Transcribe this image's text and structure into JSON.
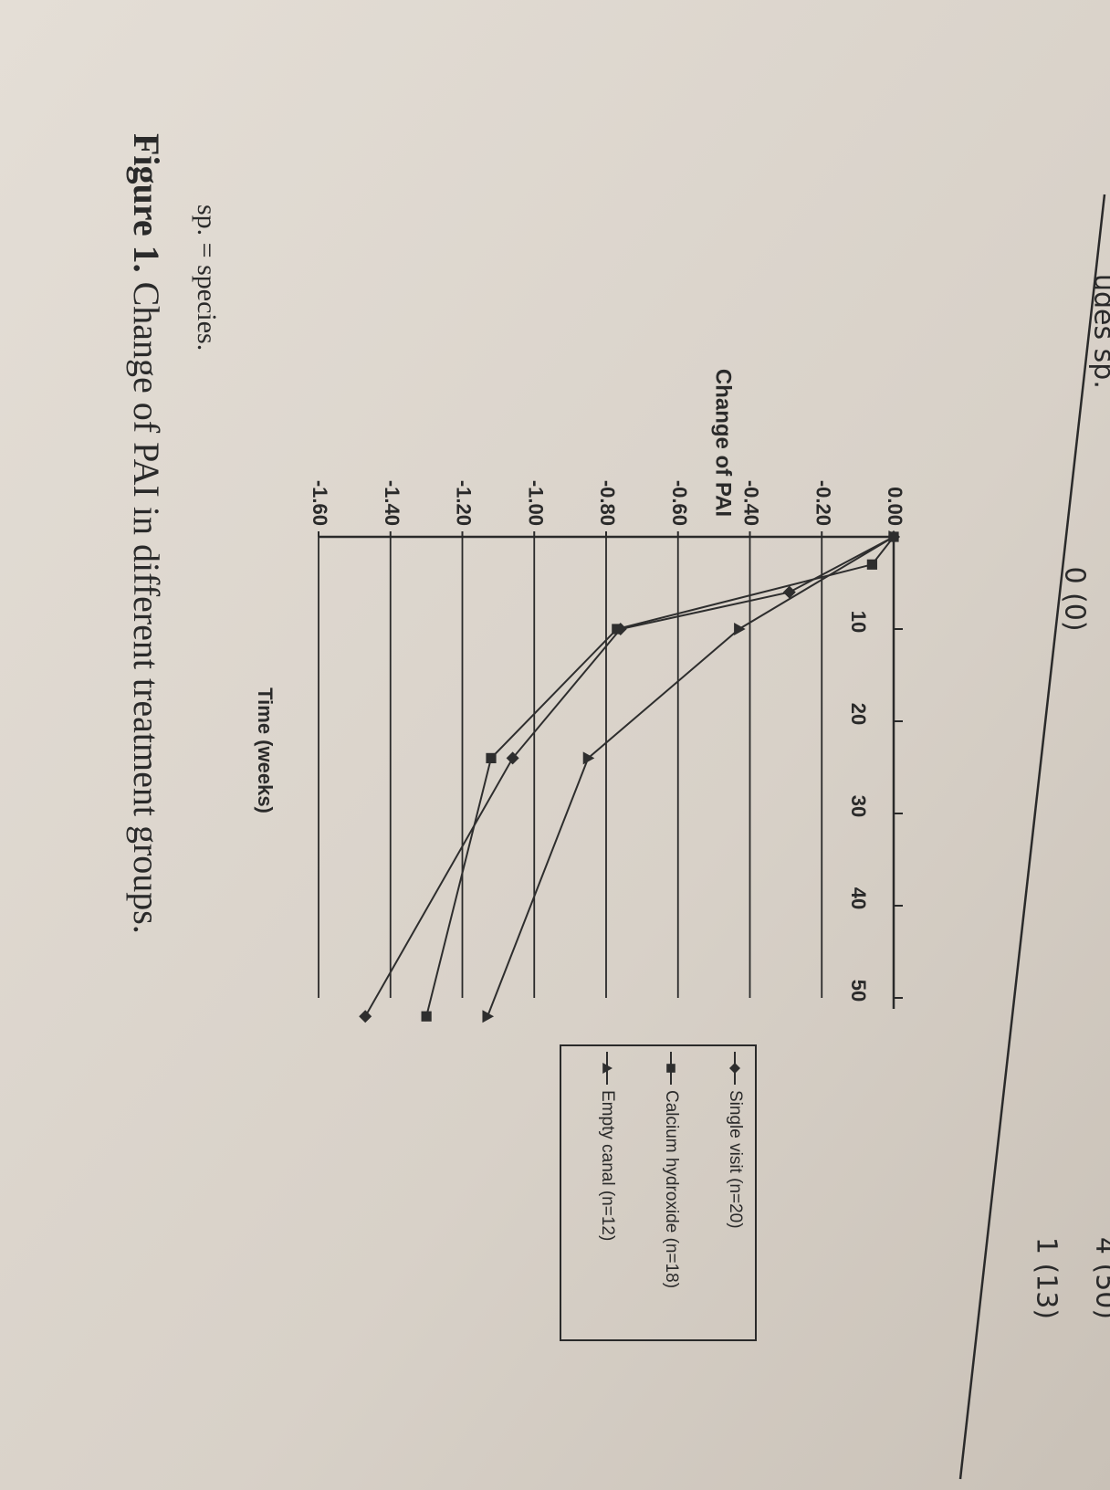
{
  "page": {
    "table_cut_text": "udes sp.",
    "table_cell_1": "0 (0)",
    "table_cell_2": "4 (50)",
    "table_cell_3": "1 (13)",
    "footnote": "sp. = species.",
    "caption_label": "Figure 1.",
    "caption_text": "Change of PAI in different treatment groups."
  },
  "chart_data": {
    "type": "line",
    "ylabel": "Change of PAI",
    "xlabel": "Time (weeks)",
    "xlim": [
      0,
      50
    ],
    "xticks": [
      10,
      20,
      30,
      40,
      50
    ],
    "ylim": [
      -1.6,
      0
    ],
    "yticks": [
      {
        "value": 0,
        "label": "0.00"
      },
      {
        "value": -0.2,
        "label": "-0.20"
      },
      {
        "value": -0.4,
        "label": "-0.40"
      },
      {
        "value": -0.6,
        "label": "-0.60"
      },
      {
        "value": -0.8,
        "label": "-0.80"
      },
      {
        "value": -1.0,
        "label": "-1.00"
      },
      {
        "value": -1.2,
        "label": "-1.20"
      },
      {
        "value": -1.4,
        "label": "-1.40"
      },
      {
        "value": -1.6,
        "label": "-1.60"
      }
    ],
    "grid": true,
    "series": [
      {
        "name": "Single visit (n=20)",
        "color": "#2e2e2e",
        "marker": "diamond",
        "x": [
          0,
          6,
          10,
          24,
          52
        ],
        "values": [
          0,
          -0.29,
          -0.76,
          -1.06,
          -1.47
        ]
      },
      {
        "name": "Calcium hydroxide (n=18)",
        "color": "#2e2e2e",
        "marker": "square",
        "x": [
          0,
          3,
          10,
          24,
          52
        ],
        "values": [
          0,
          -0.06,
          -0.77,
          -1.12,
          -1.3
        ]
      },
      {
        "name": "Empty canal (n=12)",
        "color": "#2e2e2e",
        "marker": "triangle",
        "x": [
          0,
          10,
          24,
          52
        ],
        "values": [
          0,
          -0.43,
          -0.85,
          -1.13
        ]
      }
    ]
  }
}
